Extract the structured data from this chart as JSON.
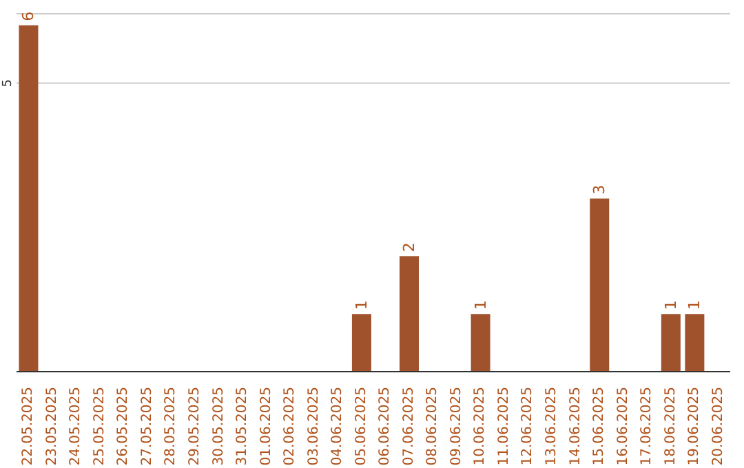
{
  "chart_data": {
    "type": "bar",
    "categories": [
      "22.05.2025",
      "23.05.2025",
      "24.05.2025",
      "25.05.2025",
      "26.05.2025",
      "27.05.2025",
      "28.05.2025",
      "29.05.2025",
      "30.05.2025",
      "31.05.2025",
      "01.06.2025",
      "02.06.2025",
      "03.06.2025",
      "04.06.2025",
      "05.06.2025",
      "06.06.2025",
      "07.06.2025",
      "08.06.2025",
      "09.06.2025",
      "10.06.2025",
      "11.06.2025",
      "12.06.2025",
      "13.06.2025",
      "14.06.2025",
      "15.06.2025",
      "16.06.2025",
      "17.06.2025",
      "18.06.2025",
      "19.06.2025",
      "20.06.2025"
    ],
    "values": [
      6,
      0,
      0,
      0,
      0,
      0,
      0,
      0,
      0,
      0,
      0,
      0,
      0,
      0,
      1,
      0,
      2,
      0,
      0,
      1,
      0,
      0,
      0,
      0,
      3,
      0,
      0,
      1,
      1,
      0
    ],
    "value_labels": [
      "6",
      null,
      null,
      null,
      null,
      null,
      null,
      null,
      null,
      null,
      null,
      null,
      null,
      null,
      "1",
      null,
      "2",
      null,
      null,
      "1",
      null,
      null,
      null,
      null,
      "3",
      null,
      null,
      "1",
      "1",
      null
    ],
    "color": "#a0522d",
    "ylim": [
      0,
      6.2
    ],
    "yticks": [
      5
    ],
    "grid": "y"
  }
}
